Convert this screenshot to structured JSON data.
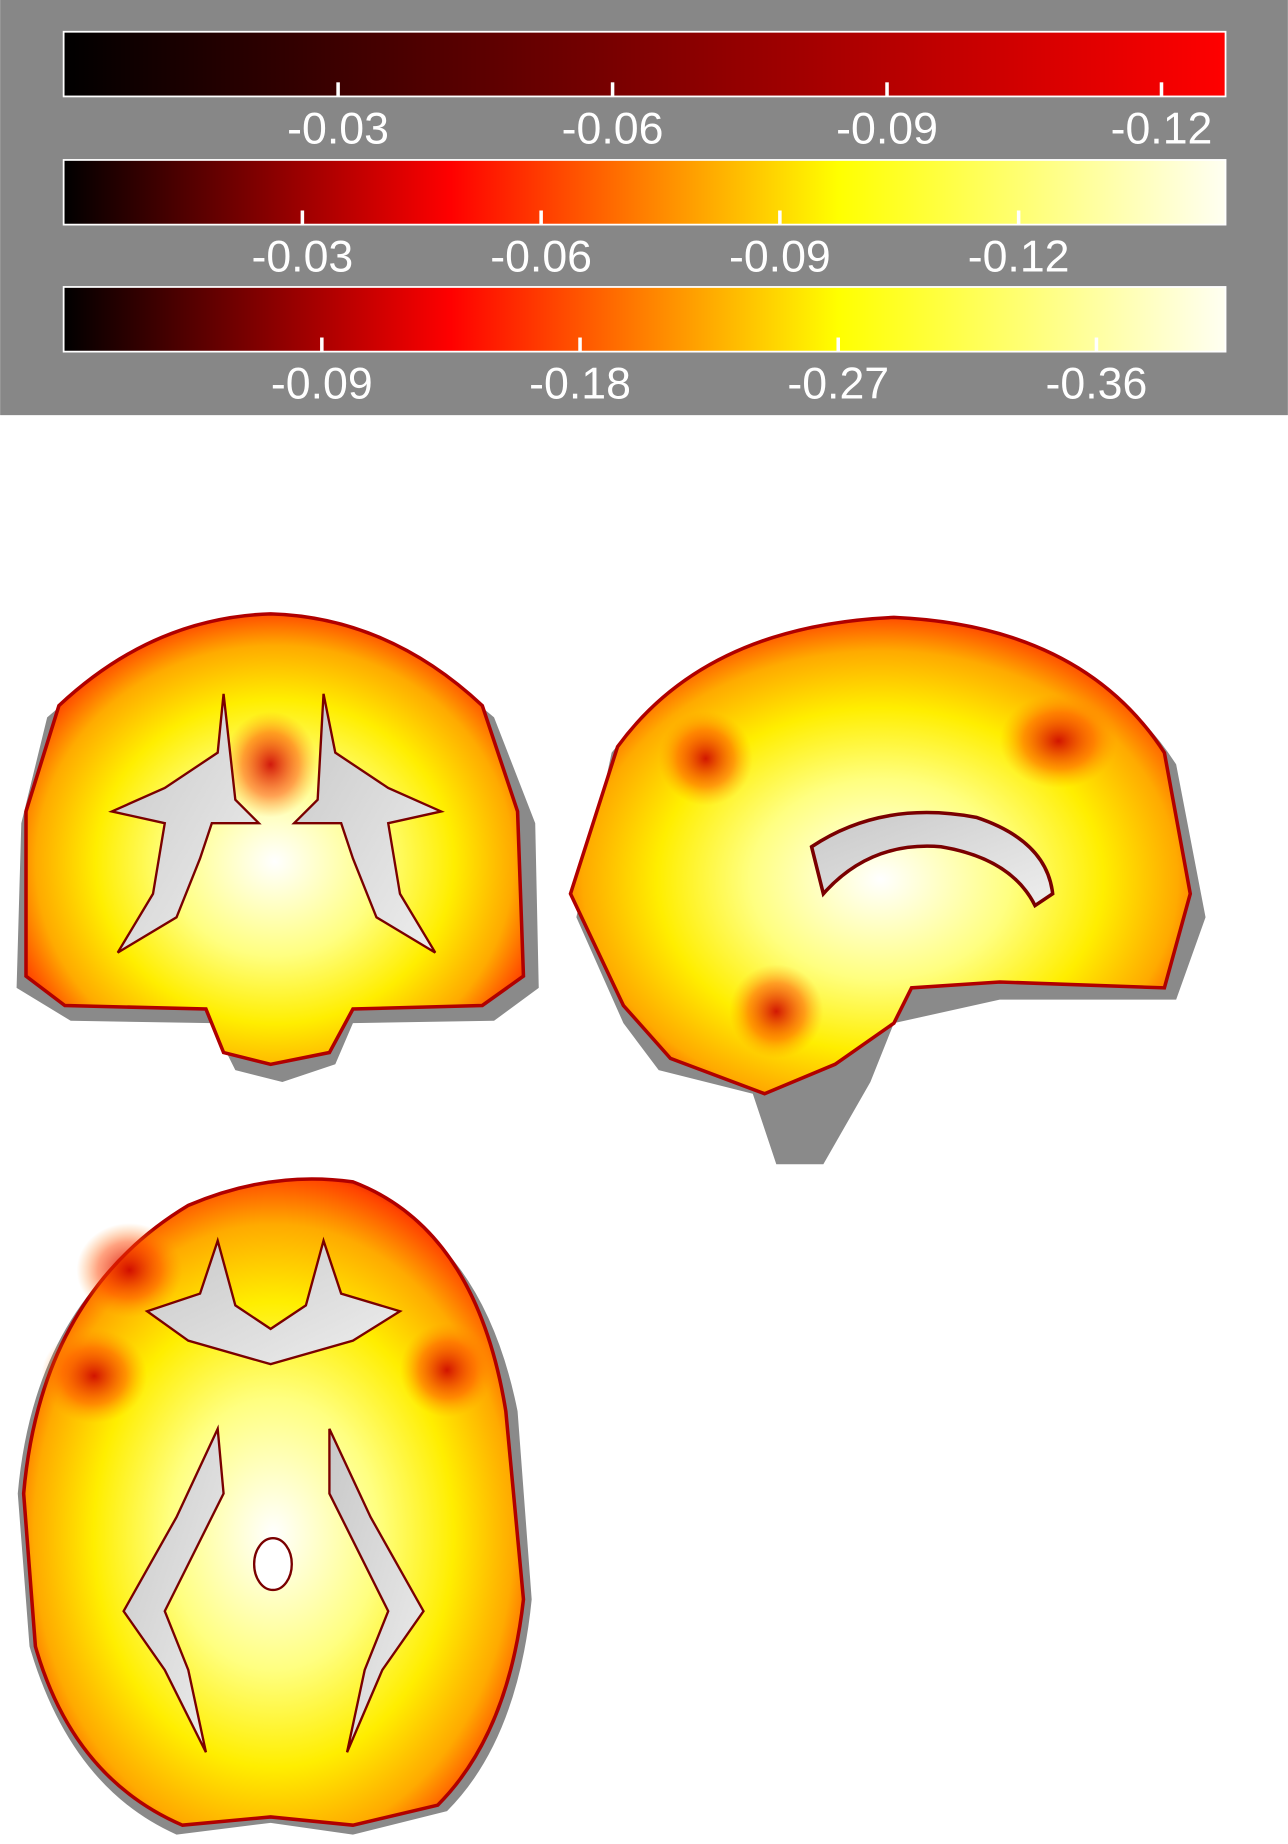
{
  "chart_data": [
    {
      "type": "colorbar",
      "colors": [
        "#000000",
        "#ff0000"
      ],
      "xlim": [
        0,
        -0.127
      ],
      "xticks": [
        -0.03,
        -0.06,
        -0.09,
        -0.12
      ]
    },
    {
      "type": "colorbar",
      "colors": [
        "#000000",
        "#ff0000",
        "#ffff00",
        "#fffff2"
      ],
      "xlim": [
        0,
        -0.146
      ],
      "xticks": [
        -0.03,
        -0.06,
        -0.09,
        -0.12
      ]
    },
    {
      "type": "colorbar",
      "colors": [
        "#000000",
        "#ff0000",
        "#ffff00",
        "#fffff2"
      ],
      "xlim": [
        0,
        -0.405
      ],
      "xticks": [
        -0.09,
        -0.18,
        -0.27,
        -0.36
      ]
    }
  ]
}
